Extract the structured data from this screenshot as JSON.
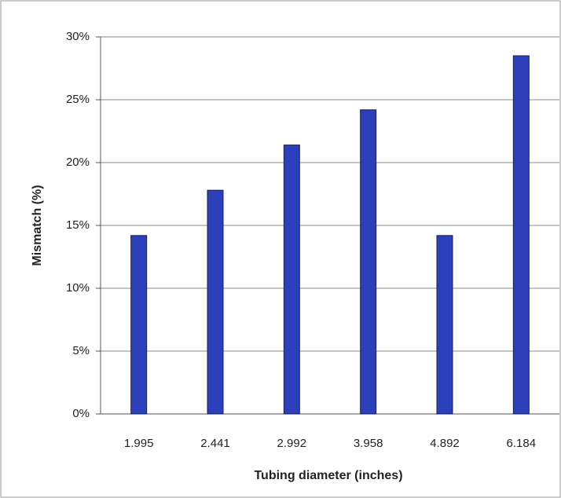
{
  "chart_data": {
    "type": "bar",
    "x_label": "Tubing diameter (inches)",
    "y_label": "Mismatch (%)",
    "categories": [
      "1.995",
      "2.441",
      "2.992",
      "3.958",
      "4.892",
      "6.184"
    ],
    "values": [
      14.2,
      17.8,
      21.4,
      24.2,
      14.2,
      28.5
    ],
    "color": "#2b3fba",
    "ylim": [
      0,
      30
    ],
    "yticks": [
      {
        "value": 0,
        "label": "0%"
      },
      {
        "value": 5,
        "label": "5%"
      },
      {
        "value": 10,
        "label": "10%"
      },
      {
        "value": 15,
        "label": "15%"
      },
      {
        "value": 20,
        "label": "20%"
      },
      {
        "value": 25,
        "label": "25%"
      },
      {
        "value": 30,
        "label": "30%"
      }
    ],
    "grid": true
  }
}
